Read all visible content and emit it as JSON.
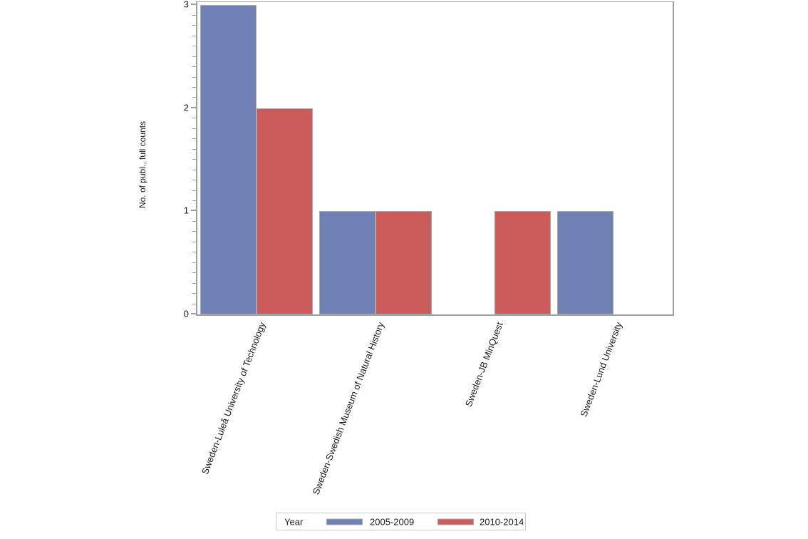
{
  "chart_data": {
    "type": "bar",
    "title": "",
    "xlabel": "",
    "ylabel": "No. of publ., full counts",
    "ylim": [
      0,
      3.03
    ],
    "yticks": [
      0,
      1,
      2,
      3
    ],
    "minor_tick_step": 0.1,
    "grid": "off",
    "categories": [
      "Sweden-Luleå University of Technology",
      "Sweden-Swedish Museum of Natural History",
      "Sweden-JB MinQuest",
      "Sweden-Lund University"
    ],
    "series": [
      {
        "name": "2005-2009",
        "color": "#6F80B4",
        "values": [
          3,
          1,
          0,
          1
        ]
      },
      {
        "name": "2010-2014",
        "color": "#CC5B5B",
        "values": [
          2,
          1,
          1,
          0
        ]
      }
    ],
    "legend": {
      "title": "Year",
      "position": "bottom",
      "entries": [
        "2005-2009",
        "2010-2014"
      ]
    }
  },
  "colors": {
    "series_2005_2009": "#6F80B4",
    "series_2010_2014": "#CC5B5B",
    "bar_border": "#a8a8a8",
    "axis_frame": "#9aa0a3",
    "legend_border": "#c9c9c9",
    "text": "#1a1a1a",
    "background": "#ffffff"
  }
}
